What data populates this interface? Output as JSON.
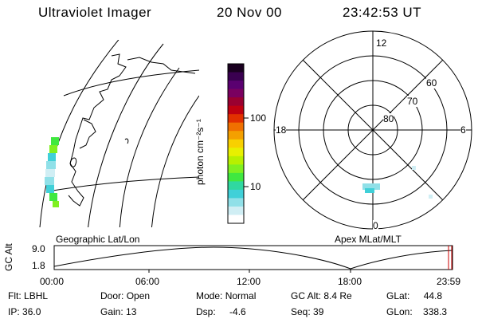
{
  "header": {
    "title": "Ultraviolet Imager",
    "date": "20 Nov 00",
    "time": "23:42:53 UT"
  },
  "left_panel": {
    "label": "Geographic Lat/Lon"
  },
  "colorbar": {
    "unit_label": "photon cm⁻²s⁻¹",
    "ticks": [
      "100",
      "10"
    ],
    "colors": [
      "#1a0020",
      "#3a0050",
      "#5a0070",
      "#7a0060",
      "#9a0030",
      "#c00010",
      "#e23000",
      "#f07000",
      "#f4a000",
      "#f8d000",
      "#e8f000",
      "#b8f000",
      "#80f020",
      "#40e840",
      "#30d8a0",
      "#40d0d8",
      "#90e0e8",
      "#d0eef4",
      "#ffffff"
    ]
  },
  "polar": {
    "label": "Apex MLat/MLT",
    "mlt_labels": {
      "top": "12",
      "left": "18",
      "right": "6",
      "bottom": "0"
    },
    "lat_labels": [
      "60",
      "70",
      "80"
    ]
  },
  "orbit_plot": {
    "ylabel": "GC Alt",
    "yticks": [
      "9.0",
      "1.8"
    ],
    "xticks": [
      "00:00",
      "06:00",
      "12:00",
      "18:00",
      "23:59"
    ]
  },
  "footer": {
    "row1": [
      {
        "label": "Flt:",
        "value": "LBHL"
      },
      {
        "label": "Door:",
        "value": "Open"
      },
      {
        "label": "Mode:",
        "value": "Normal"
      },
      {
        "label": "GC Alt:",
        "value": "8.4 Re"
      },
      {
        "label": "GLat:",
        "value": "44.8"
      }
    ],
    "row2": [
      {
        "label": "IP:",
        "value": "36.0"
      },
      {
        "label": "Gain:",
        "value": "13"
      },
      {
        "label": "Dsp:",
        "value": "-4.6"
      },
      {
        "label": "Seq:",
        "value": "39"
      },
      {
        "label": "GLon:",
        "value": "338.3"
      }
    ]
  }
}
